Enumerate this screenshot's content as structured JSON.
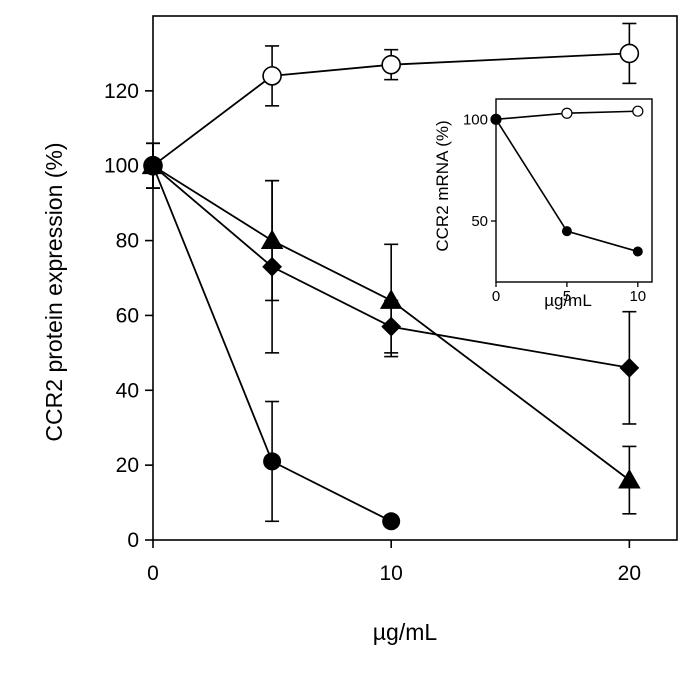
{
  "chart_data": [
    {
      "type": "line",
      "title": "",
      "xlabel": "µg/mL",
      "ylabel": "CCR2 protein expression  (%)",
      "xlim": [
        0,
        22
      ],
      "ylim": [
        0,
        140
      ],
      "xticks": [
        0,
        10,
        20
      ],
      "yticks": [
        0,
        20,
        40,
        60,
        80,
        100,
        120
      ],
      "grid": false,
      "legend": "none",
      "series": [
        {
          "marker": "open-circle",
          "points": [
            {
              "x": 0,
              "y": 100,
              "err": 6
            },
            {
              "x": 5,
              "y": 124,
              "err": 8
            },
            {
              "x": 10,
              "y": 127,
              "err": 4
            },
            {
              "x": 20,
              "y": 130,
              "err": 8
            }
          ]
        },
        {
          "marker": "filled-triangle",
          "points": [
            {
              "x": 0,
              "y": 100,
              "err": 6
            },
            {
              "x": 5,
              "y": 80,
              "err": 16
            },
            {
              "x": 10,
              "y": 64,
              "err": 15
            },
            {
              "x": 20,
              "y": 16,
              "err": 9
            }
          ]
        },
        {
          "marker": "filled-diamond",
          "points": [
            {
              "x": 0,
              "y": 100,
              "err": 6
            },
            {
              "x": 5,
              "y": 73,
              "err": 23
            },
            {
              "x": 10,
              "y": 57,
              "err": 7
            },
            {
              "x": 20,
              "y": 46,
              "err": 15
            }
          ]
        },
        {
          "marker": "filled-circle",
          "points": [
            {
              "x": 0,
              "y": 100,
              "err": 6
            },
            {
              "x": 5,
              "y": 21,
              "err": 16
            },
            {
              "x": 10,
              "y": 5,
              "err": 1
            }
          ]
        }
      ]
    },
    {
      "type": "line",
      "title": "",
      "xlabel": "µg/mL",
      "ylabel": "CCR2 mRNA (%)",
      "xlim": [
        0,
        11
      ],
      "ylim": [
        20,
        110
      ],
      "xticks": [
        0,
        5,
        10
      ],
      "yticks": [
        50,
        100
      ],
      "grid": false,
      "legend": "none",
      "series": [
        {
          "marker": "open-circle",
          "points": [
            {
              "x": 0,
              "y": 100
            },
            {
              "x": 5,
              "y": 103
            },
            {
              "x": 10,
              "y": 104
            }
          ]
        },
        {
          "marker": "filled-circle",
          "points": [
            {
              "x": 0,
              "y": 100
            },
            {
              "x": 5,
              "y": 45
            },
            {
              "x": 10,
              "y": 35
            }
          ]
        }
      ]
    }
  ]
}
